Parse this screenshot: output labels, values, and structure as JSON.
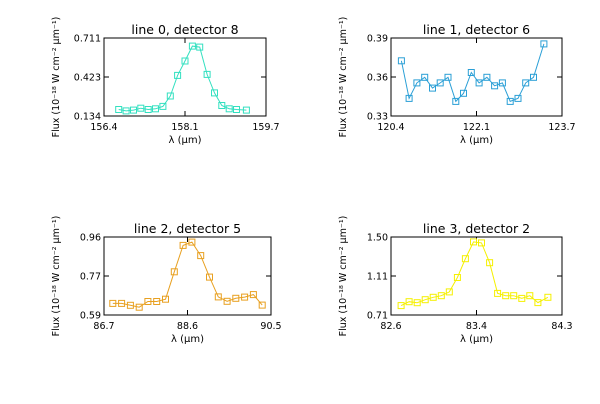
{
  "chart_data": [
    {
      "type": "line",
      "title": "line 0, detector 8",
      "xlabel": "λ (μm)",
      "ylabel": "Flux (10⁻¹⁸ W cm⁻² μm⁻¹)",
      "xlim": [
        156.4,
        159.7
      ],
      "ylim": [
        0.134,
        0.711
      ],
      "xticks": [
        "156.4",
        "158.1",
        "159.7"
      ],
      "yticks": [
        "0.134",
        "0.423",
        "0.711"
      ],
      "color": "#33e0c0",
      "marker": "square",
      "series": [
        {
          "x": [
            156.7,
            156.85,
            157.0,
            157.15,
            157.3,
            157.45,
            157.6,
            157.75,
            157.9,
            158.05,
            158.2,
            158.35,
            158.5,
            158.65,
            158.8,
            158.95,
            159.1,
            159.3
          ],
          "y": [
            0.182,
            0.172,
            0.178,
            0.192,
            0.182,
            0.187,
            0.205,
            0.282,
            0.434,
            0.541,
            0.651,
            0.644,
            0.442,
            0.305,
            0.212,
            0.187,
            0.182,
            0.178
          ]
        }
      ]
    },
    {
      "type": "line",
      "title": "line 1, detector 6",
      "xlabel": "λ (μm)",
      "ylabel": "Flux (10⁻¹⁸ W cm⁻² μm⁻¹)",
      "xlim": [
        120.4,
        123.7
      ],
      "ylim": [
        0.33,
        0.39
      ],
      "xticks": [
        "120.4",
        "122.1",
        "123.7"
      ],
      "yticks": [
        "0.33",
        "0.36",
        "0.39"
      ],
      "color": "#2a9fd6",
      "marker": "square",
      "series": [
        {
          "x": [
            120.6,
            120.75,
            120.9,
            121.05,
            121.2,
            121.35,
            121.5,
            121.65,
            121.8,
            121.95,
            122.1,
            122.25,
            122.4,
            122.55,
            122.7,
            122.85,
            123.0,
            123.15,
            123.35
          ],
          "y": [
            0.3725,
            0.3435,
            0.3555,
            0.3598,
            0.3515,
            0.3555,
            0.3598,
            0.3412,
            0.3475,
            0.3635,
            0.3555,
            0.3598,
            0.3532,
            0.3555,
            0.3412,
            0.3435,
            0.3555,
            0.3598,
            0.3855
          ]
        }
      ]
    },
    {
      "type": "line",
      "title": "line 2, detector 5",
      "xlabel": "λ (μm)",
      "ylabel": "Flux (10⁻¹⁸ W cm⁻² μm⁻¹)",
      "xlim": [
        86.7,
        90.5
      ],
      "ylim": [
        0.59,
        0.96
      ],
      "xticks": [
        "86.7",
        "88.6",
        "90.5"
      ],
      "yticks": [
        "0.59",
        "0.77",
        "0.96"
      ],
      "color": "#e8a020",
      "marker": "square",
      "series": [
        {
          "x": [
            86.9,
            87.1,
            87.3,
            87.5,
            87.7,
            87.9,
            88.1,
            88.3,
            88.5,
            88.7,
            88.9,
            89.1,
            89.3,
            89.5,
            89.7,
            89.9,
            90.1,
            90.3
          ],
          "y": [
            0.645,
            0.645,
            0.636,
            0.627,
            0.654,
            0.654,
            0.665,
            0.795,
            0.92,
            0.936,
            0.872,
            0.77,
            0.676,
            0.655,
            0.669,
            0.675,
            0.687,
            0.637
          ]
        }
      ]
    },
    {
      "type": "line",
      "title": "line 3, detector 2",
      "xlabel": "λ (μm)",
      "ylabel": "Flux (10⁻¹⁸ W cm⁻² μm⁻¹)",
      "xlim": [
        82.6,
        84.3
      ],
      "ylim": [
        0.71,
        1.5
      ],
      "xticks": [
        "82.6",
        "83.4",
        "84.3"
      ],
      "yticks": [
        "0.71",
        "1.11",
        "1.50"
      ],
      "color": "#f5f000",
      "marker": "square",
      "series": [
        {
          "x": [
            82.7,
            82.78,
            82.86,
            82.94,
            83.02,
            83.1,
            83.18,
            83.26,
            83.34,
            83.42,
            83.5,
            83.58,
            83.66,
            83.74,
            83.82,
            83.9,
            83.98,
            84.06,
            84.16
          ],
          "y": [
            0.805,
            0.845,
            0.835,
            0.865,
            0.889,
            0.905,
            0.944,
            1.09,
            1.28,
            1.45,
            1.44,
            1.24,
            0.929,
            0.905,
            0.905,
            0.878,
            0.905,
            0.836,
            0.889
          ]
        }
      ]
    }
  ]
}
